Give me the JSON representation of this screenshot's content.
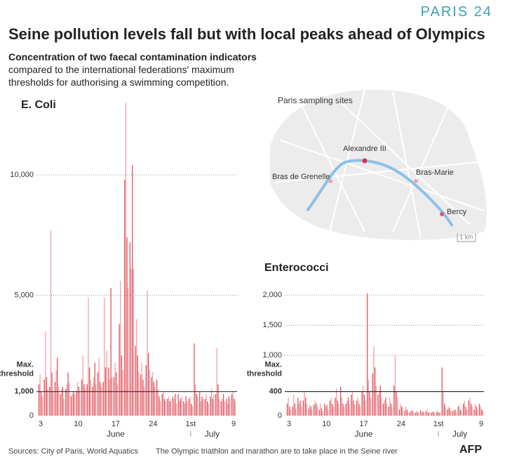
{
  "header": {
    "logo": "PARIS 24",
    "title": "Seine pollution levels fall but with local peaks ahead of Olympics",
    "subtitle_bold": "Concentration of two faecal contamination indicators",
    "subtitle": "compared to the international federations' maximum thresholds for authorising a swimming competition."
  },
  "map": {
    "title": "Paris sampling sites",
    "sites": [
      "Alexandre III",
      "Bras de Grenelle",
      "Bras-Marie",
      "Bercy"
    ],
    "scale": "1 km"
  },
  "chart_data": [
    {
      "type": "bar",
      "title": "E. Coli",
      "ylim": [
        0,
        13500
      ],
      "yticks": [
        0,
        {
          "value": 1000,
          "label": "1,000"
        },
        {
          "value": 5000,
          "label": "5,000"
        },
        {
          "value": 10000,
          "label": "10,000"
        }
      ],
      "grid": true,
      "threshold": 1000,
      "threshold_label": [
        "Max.",
        "threshold"
      ],
      "categories": [
        "3",
        null,
        null,
        null,
        null,
        null,
        null,
        "10",
        null,
        null,
        null,
        null,
        null,
        null,
        "17",
        null,
        null,
        null,
        null,
        null,
        null,
        "24",
        null,
        null,
        null,
        null,
        null,
        null,
        "1st",
        null,
        null,
        null,
        null,
        null,
        null,
        null,
        "9"
      ],
      "x_group_labels": [
        "June",
        "July"
      ],
      "series": [
        {
          "color": "#e3565f",
          "values": [
            1300,
            1500,
            1200,
            1400,
            900,
            1100,
            800,
            1000,
            1500,
            1300,
            1200,
            1800,
            1400,
            2000,
            1600,
            3800,
            9800,
            7200,
            2900,
            1700,
            2100,
            1600,
            1500,
            900,
            700,
            800,
            900,
            600,
            700,
            3000,
            1000,
            700,
            800,
            900,
            600,
            700,
            900
          ]
        },
        {
          "color": "#f3a2a7",
          "values": [
            1700,
            3500,
            7700,
            1900,
            1100,
            1300,
            900,
            1400,
            2500,
            4900,
            1600,
            2400,
            4900,
            1500,
            2200,
            5600,
            13000,
            6100,
            4000,
            2200,
            5200,
            1800,
            1100,
            1000,
            800,
            700,
            600,
            500,
            800,
            1300,
            600,
            900,
            1100,
            2800,
            700,
            500,
            1000
          ]
        },
        {
          "color": "#e3565f",
          "values": [
            1000,
            1600,
            1800,
            2400,
            1200,
            1800,
            1000,
            1200,
            1300,
            2000,
            2200,
            1400,
            2000,
            5300,
            1800,
            2500,
            7400,
            10400,
            2500,
            1500,
            2600,
            1400,
            800,
            700,
            600,
            900,
            700,
            800,
            500,
            900,
            800,
            600,
            700,
            1300,
            900,
            800,
            700
          ]
        },
        {
          "color": "#f3a2a7",
          "values": [
            800,
            1100,
            1000,
            1200,
            700,
            1400,
            900,
            1000,
            1100,
            1500,
            1300,
            1200,
            2700,
            1600,
            1300,
            1900,
            5300,
            6100,
            1800,
            1200,
            1900,
            1200,
            600,
            600,
            700,
            500,
            800,
            600,
            400,
            800,
            700,
            500,
            900,
            700,
            600,
            700,
            600
          ]
        }
      ]
    },
    {
      "type": "bar",
      "title": "Enterococci",
      "ylim": [
        0,
        2050
      ],
      "yticks": [
        0,
        {
          "value": 400,
          "label": "400"
        },
        {
          "value": 1000,
          "label": "1,000"
        },
        {
          "value": 1500,
          "label": "1,500"
        },
        {
          "value": 2000,
          "label": "2,000"
        }
      ],
      "grid": true,
      "threshold": 400,
      "threshold_label": [
        "Max.",
        "threshold"
      ],
      "categories": [
        "3",
        null,
        null,
        null,
        null,
        null,
        null,
        "10",
        null,
        null,
        null,
        null,
        null,
        null,
        "17",
        null,
        null,
        null,
        null,
        null,
        null,
        "24",
        null,
        null,
        null,
        null,
        null,
        null,
        "1st",
        null,
        null,
        null,
        null,
        null,
        null,
        null,
        "9"
      ],
      "x_group_labels": [
        "June",
        "July"
      ],
      "series": [
        {
          "color": "#e3565f",
          "values": [
            200,
            150,
            300,
            250,
            120,
            180,
            100,
            200,
            250,
            300,
            480,
            200,
            350,
            250,
            400,
            2030,
            700,
            350,
            200,
            150,
            500,
            100,
            80,
            60,
            50,
            90,
            70,
            50,
            60,
            800,
            100,
            80,
            150,
            200,
            250,
            100,
            200
          ]
        },
        {
          "color": "#f3a2a7",
          "values": [
            300,
            350,
            200,
            400,
            180,
            250,
            200,
            150,
            300,
            450,
            300,
            250,
            400,
            300,
            500,
            600,
            1150,
            400,
            250,
            300,
            1000,
            200,
            150,
            100,
            80,
            60,
            100,
            70,
            80,
            400,
            150,
            90,
            180,
            250,
            300,
            200,
            150
          ]
        },
        {
          "color": "#e3565f",
          "values": [
            150,
            200,
            250,
            300,
            150,
            200,
            120,
            180,
            200,
            250,
            200,
            300,
            250,
            200,
            350,
            400,
            800,
            500,
            300,
            200,
            400,
            150,
            100,
            80,
            60,
            70,
            50,
            60,
            50,
            200,
            120,
            100,
            100,
            150,
            200,
            150,
            100
          ]
        },
        {
          "color": "#f3a2a7",
          "values": [
            100,
            120,
            150,
            200,
            100,
            150,
            80,
            100,
            150,
            200,
            150,
            200,
            180,
            150,
            250,
            300,
            500,
            300,
            200,
            150,
            300,
            120,
            60,
            50,
            40,
            50,
            60,
            40,
            50,
            150,
            80,
            60,
            80,
            100,
            150,
            100,
            80
          ]
        }
      ]
    }
  ],
  "footer": {
    "sources": "Sources: City of Paris, World Aquatics",
    "note": "The Olympic triathlon and marathon are to take place in the Seine river",
    "credit": "AFP"
  }
}
